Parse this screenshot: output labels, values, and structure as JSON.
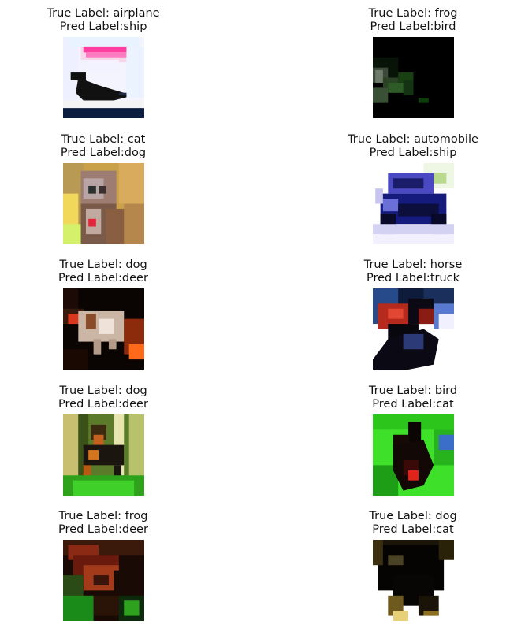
{
  "samples": [
    {
      "true_label": "True Label: airplane",
      "pred_label": "Pred Label:ship",
      "image": "airplane"
    },
    {
      "true_label": "True Label: frog",
      "pred_label": "Pred Label:bird",
      "image": "frog-dark"
    },
    {
      "true_label": "True Label: cat",
      "pred_label": "Pred Label:dog",
      "image": "cat"
    },
    {
      "true_label": "True Label: automobile",
      "pred_label": "Pred Label:ship",
      "image": "automobile"
    },
    {
      "true_label": "True Label: dog",
      "pred_label": "Pred Label:deer",
      "image": "dog-dark"
    },
    {
      "true_label": "True Label: horse",
      "pred_label": "Pred Label:truck",
      "image": "horse"
    },
    {
      "true_label": "True Label: dog",
      "pred_label": "Pred Label:deer",
      "image": "dog-forest"
    },
    {
      "true_label": "True Label: bird",
      "pred_label": "Pred Label:cat",
      "image": "bird-green"
    },
    {
      "true_label": "True Label: frog",
      "pred_label": "Pred Label:deer",
      "image": "frog-red"
    },
    {
      "true_label": "True Label: dog",
      "pred_label": "Pred Label:cat",
      "image": "dog-black"
    }
  ]
}
